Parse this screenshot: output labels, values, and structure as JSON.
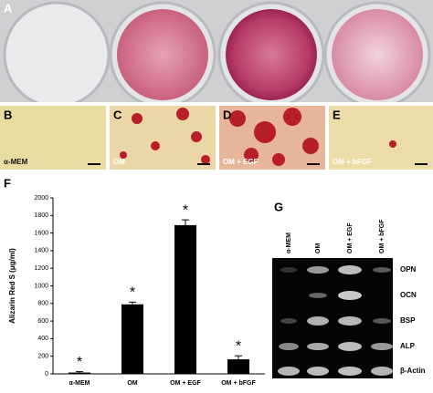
{
  "panel_labels": [
    "A",
    "B",
    "C",
    "D",
    "E",
    "F",
    "G"
  ],
  "micrographs": {
    "captions": [
      "α-MEM",
      "OM",
      "OM + EGF",
      "OM + bFGF"
    ]
  },
  "chart_data": {
    "type": "bar",
    "ylabel": "Alizarin Red S (μg/ml)",
    "categories": [
      "α-MEM",
      "OM",
      "OM + EGF",
      "OM + bFGF"
    ],
    "values": [
      15,
      790,
      1690,
      165
    ],
    "errors": [
      10,
      25,
      60,
      40
    ],
    "annotations": [
      "*",
      "*",
      "*",
      "*"
    ],
    "color": "#000000",
    "ylim": [
      0,
      2000
    ],
    "yticks": [
      0,
      200,
      400,
      600,
      800,
      1000,
      1200,
      1400,
      1600,
      1800,
      2000
    ]
  },
  "gel": {
    "lanes": [
      "α-MEM",
      "OM",
      "OM + EGF",
      "OM + bFGF"
    ],
    "rows": [
      "OPN",
      "OCN",
      "BSP",
      "ALP",
      "β-Actin"
    ]
  }
}
